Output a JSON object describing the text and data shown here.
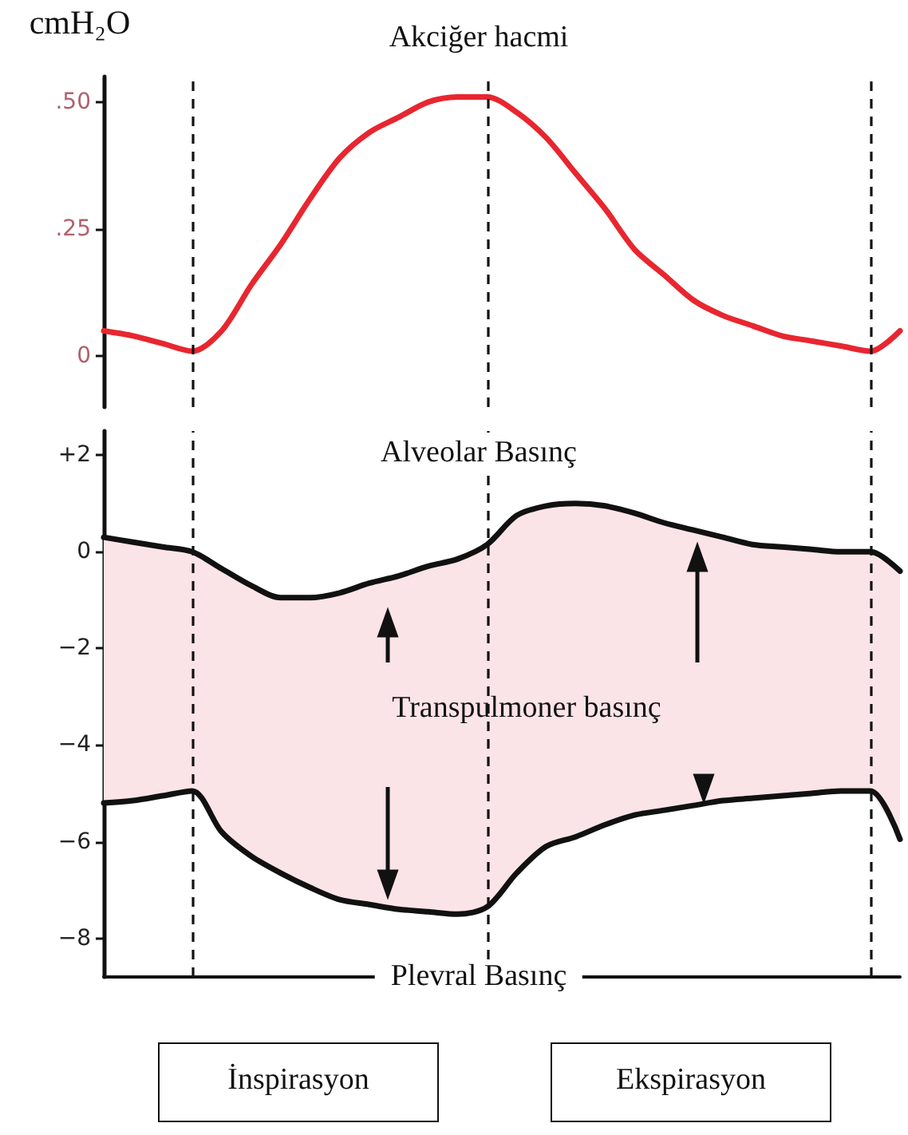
{
  "chart_data": [
    {
      "type": "line",
      "title": "Akciğer hacmi",
      "categories": [
        null,
        null,
        null,
        null,
        null,
        null,
        null,
        null,
        null,
        null,
        null,
        null,
        null,
        null,
        null,
        null,
        null,
        null,
        null,
        null,
        null,
        null,
        null,
        null,
        null,
        null,
        null,
        null
      ],
      "series": [
        {
          "color": "#e8262f",
          "values": [
            0.05,
            0.04,
            0.025,
            0.01,
            0.05,
            0.14,
            0.22,
            0.31,
            0.39,
            0.44,
            0.47,
            0.5,
            0.51,
            0.51,
            0.48,
            0.43,
            0.36,
            0.29,
            0.21,
            0.16,
            0.11,
            0.08,
            0.06,
            0.04,
            0.03,
            0.02,
            0.01,
            0.05
          ]
        }
      ],
      "ylim": [
        -0.1,
        0.55
      ],
      "yticks": [
        {
          "value": 0,
          "label": "0"
        },
        {
          "value": 0.25,
          "label": ".25"
        },
        {
          "value": 0.5,
          "label": ".50"
        }
      ],
      "tick_labels": "y",
      "marker": "none",
      "ylabel": "cmH₂O",
      "grid": "x"
    },
    {
      "type": "line",
      "categories": [
        null,
        null,
        null,
        null,
        null,
        null,
        null,
        null,
        null,
        null,
        null,
        null,
        null,
        null,
        null,
        null,
        null,
        null,
        null,
        null,
        null,
        null,
        null,
        null,
        null,
        null,
        null,
        null
      ],
      "series": [
        {
          "name": "Alveolar Basınç",
          "color": "#111111",
          "values": [
            0.3,
            0.2,
            0.1,
            0,
            -0.35,
            -0.7,
            -0.95,
            -0.95,
            -0.85,
            -0.65,
            -0.5,
            -0.3,
            -0.15,
            0.15,
            0.75,
            0.95,
            1.0,
            0.95,
            0.8,
            0.6,
            0.45,
            0.3,
            0.15,
            0.1,
            0.05,
            0,
            0,
            -0.4
          ],
          "upper": [
            0.3,
            0.2,
            0.1,
            0,
            -0.35,
            -0.7,
            -0.95,
            -0.95,
            -0.85,
            -0.65,
            -0.5,
            -0.3,
            -0.15,
            0.15,
            0.75,
            0.95,
            1.0,
            0.95,
            0.8,
            0.6,
            0.45,
            0.3,
            0.15,
            0.1,
            0.05,
            0,
            0,
            -0.4
          ],
          "lower": [
            -5.2,
            -5.15,
            -5.05,
            -4.95,
            -5.8,
            -6.3,
            -6.65,
            -6.95,
            -7.2,
            -7.3,
            -7.4,
            -7.45,
            -7.5,
            -7.35,
            -6.65,
            -6.1,
            -5.9,
            -5.65,
            -5.45,
            -5.35,
            -5.25,
            -5.15,
            -5.1,
            -5.05,
            -5.0,
            -4.95,
            -4.95,
            -5.95
          ]
        },
        {
          "name": "Plevral Basınç",
          "color": "#111111",
          "values": [
            -5.2,
            -5.15,
            -5.05,
            -4.95,
            -5.8,
            -6.3,
            -6.65,
            -6.95,
            -7.2,
            -7.3,
            -7.4,
            -7.45,
            -7.5,
            -7.35,
            -6.65,
            -6.1,
            -5.9,
            -5.65,
            -5.45,
            -5.35,
            -5.25,
            -5.15,
            -5.1,
            -5.05,
            -5.0,
            -4.95,
            -4.95,
            -5.95
          ]
        }
      ],
      "ylim": [
        -8.8,
        2.5
      ],
      "yticks": [
        {
          "value": 2,
          "label": "+2"
        },
        {
          "value": 0,
          "label": "0"
        },
        {
          "value": -2,
          "label": "−2"
        },
        {
          "value": -4,
          "label": "−4"
        },
        {
          "value": -6,
          "label": "−6"
        },
        {
          "value": -8,
          "label": "−8"
        }
      ],
      "tick_labels": "y",
      "marker": "none",
      "grid": "x",
      "annotations": [
        "Transpulmoner basınç",
        "İnspirasyon",
        "Ekspirasyon"
      ]
    }
  ]
}
